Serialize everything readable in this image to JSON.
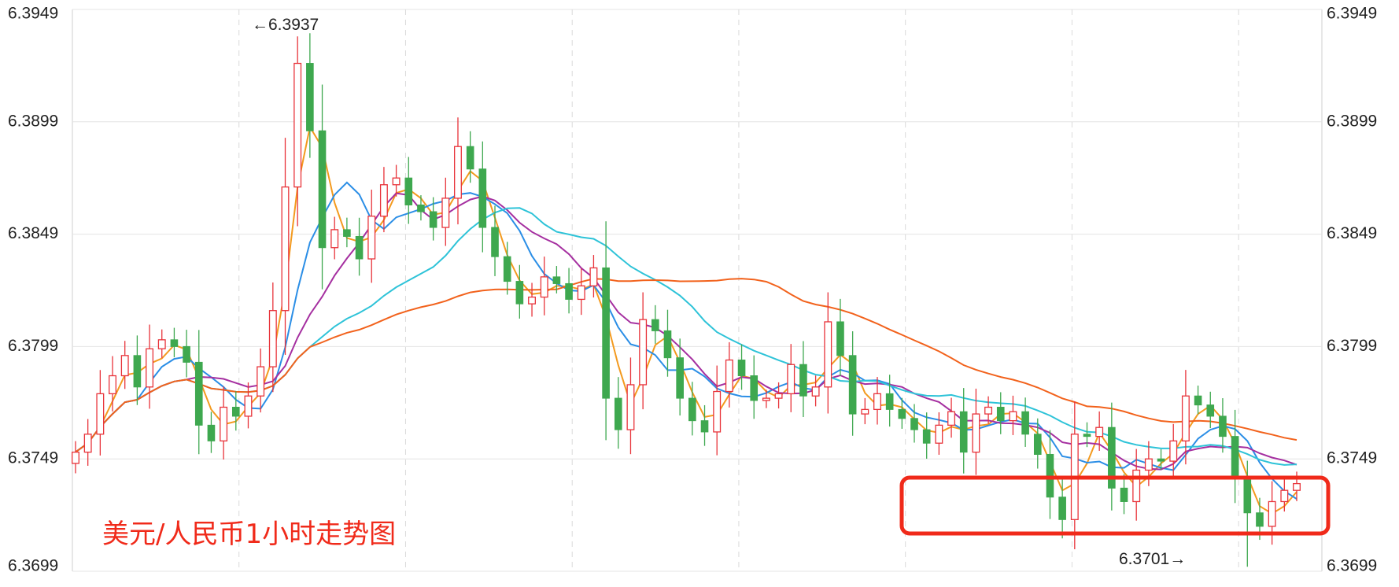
{
  "chart_data": {
    "type": "candlestick",
    "title": "美元/人民币1小时走势图",
    "y_ticks": [
      "6.3949",
      "6.3899",
      "6.3849",
      "6.3799",
      "6.3749",
      "6.3699"
    ],
    "ylim": [
      6.3699,
      6.3949
    ],
    "grid": true,
    "annotations": [
      {
        "text": "←6.3937",
        "value": 6.3937
      },
      {
        "text": "6.3701→",
        "value": 6.3701
      }
    ],
    "colors": {
      "up": "#e8333a",
      "down": "#3ea84f",
      "ma_short": "#f39a1f",
      "ma_mid": "#2b8ee6",
      "ma_long1": "#a52fa0",
      "ma_long2": "#2ec3d8",
      "ma_long3": "#f2621c",
      "highlight": "#f02a1a",
      "title": "#f02a1a"
    },
    "closes": [
      6.3752,
      6.376,
      6.3778,
      6.3786,
      6.3795,
      6.3781,
      6.3798,
      6.3802,
      6.3799,
      6.3792,
      6.3764,
      6.3757,
      6.3772,
      6.3768,
      6.3777,
      6.379,
      6.3815,
      6.387,
      6.3925,
      6.3895,
      6.3843,
      6.3851,
      6.3848,
      6.3838,
      6.3857,
      6.3871,
      6.3874,
      6.3862,
      6.3859,
      6.3852,
      6.3865,
      6.3888,
      6.3878,
      6.3852,
      6.3839,
      6.3828,
      6.3818,
      6.3821,
      6.383,
      6.3827,
      6.382,
      6.3826,
      6.3834,
      6.3776,
      6.3762,
      6.3782,
      6.3811,
      6.3806,
      6.3794,
      6.3776,
      6.3766,
      6.3761,
      6.3779,
      6.3793,
      6.3786,
      6.3775,
      6.3776,
      6.3778,
      6.3791,
      6.3777,
      6.3781,
      6.381,
      6.3795,
      6.3769,
      6.3771,
      6.3778,
      6.3771,
      6.3767,
      6.3762,
      6.3756,
      6.3764,
      6.377,
      6.3752,
      6.3769,
      6.3772,
      6.3766,
      6.377,
      6.376,
      6.3751,
      6.3732,
      6.3722,
      6.376,
      6.3759,
      6.3763,
      6.3736,
      6.373,
      6.3744,
      6.3749,
      6.3748,
      6.3757,
      6.3777,
      6.3773,
      6.3768,
      6.3759,
      6.374,
      6.3725,
      6.3719,
      6.373,
      6.3735,
      6.3738
    ]
  }
}
